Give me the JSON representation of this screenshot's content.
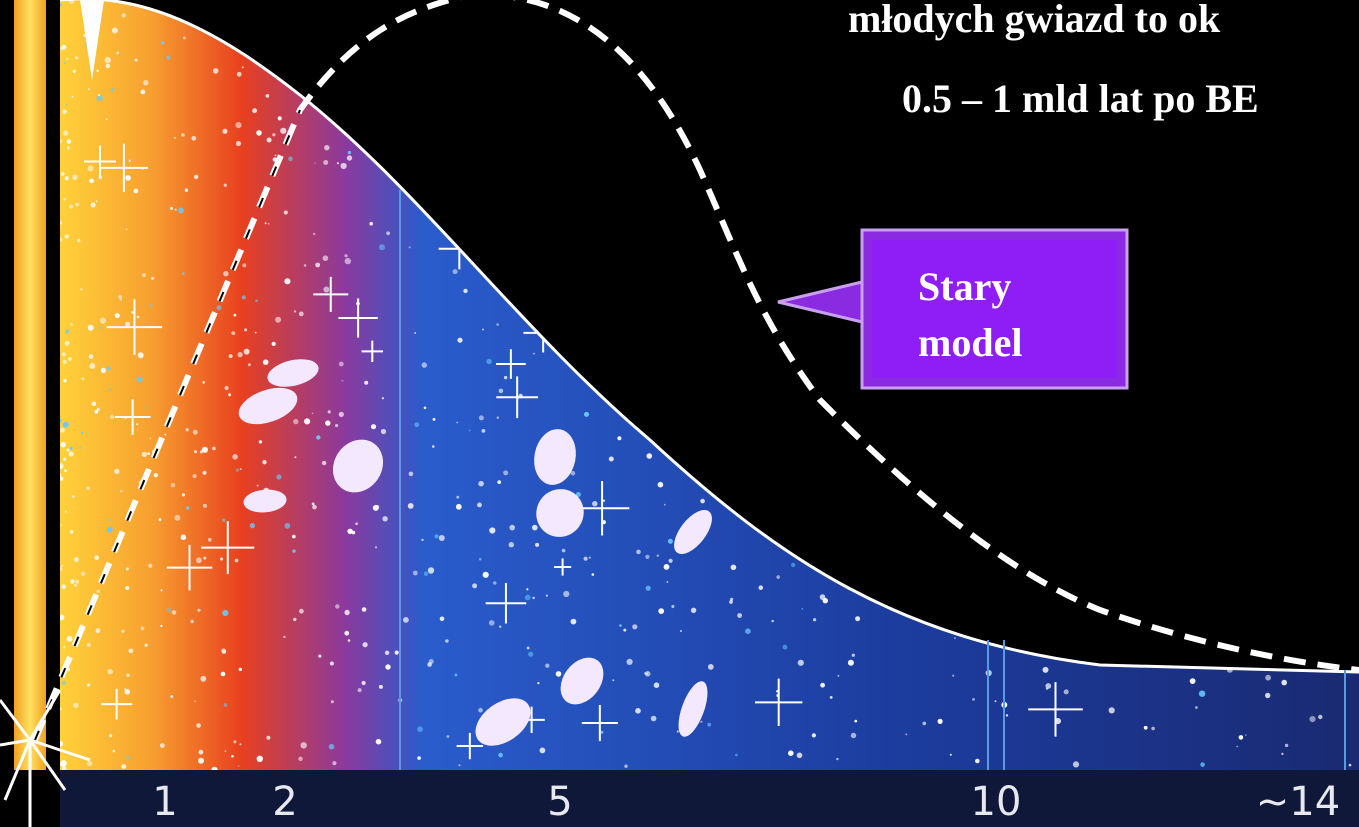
{
  "header": {
    "lines": [
      "młodych gwiazd  to ok",
      "0.5 – 1 mld lat po BE"
    ]
  },
  "callout": {
    "lines": [
      "Stary",
      "model"
    ]
  },
  "axis": {
    "labels": [
      "1",
      "2",
      "5",
      "10",
      "~14"
    ]
  }
}
